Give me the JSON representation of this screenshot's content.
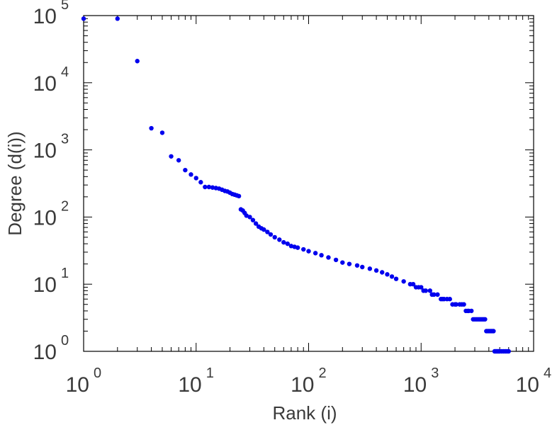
{
  "chart_data": {
    "type": "scatter",
    "xlabel": "Rank (i)",
    "ylabel": "Degree (d(i))",
    "x_scale": "log",
    "y_scale": "log",
    "xlim": [
      1,
      10000
    ],
    "ylim": [
      1,
      100000
    ],
    "grid": false,
    "marker_color": "#0000ee",
    "x_ticks": [
      {
        "base": "10",
        "exp": "0"
      },
      {
        "base": "10",
        "exp": "1"
      },
      {
        "base": "10",
        "exp": "2"
      },
      {
        "base": "10",
        "exp": "3"
      },
      {
        "base": "10",
        "exp": "4"
      }
    ],
    "y_ticks": [
      {
        "base": "10",
        "exp": "0"
      },
      {
        "base": "10",
        "exp": "1"
      },
      {
        "base": "10",
        "exp": "2"
      },
      {
        "base": "10",
        "exp": "3"
      },
      {
        "base": "10",
        "exp": "4"
      },
      {
        "base": "10",
        "exp": "5"
      }
    ],
    "series": [
      {
        "x": [
          1,
          2,
          3,
          4,
          5,
          6,
          7,
          8,
          9,
          10,
          11,
          12,
          13,
          14,
          15,
          16,
          17,
          18,
          19,
          20,
          21,
          22,
          23,
          24,
          25,
          26,
          27,
          28,
          30,
          32,
          34,
          36,
          38,
          40,
          43,
          46,
          50,
          55,
          60,
          65,
          70,
          75,
          80,
          90,
          100,
          115,
          130,
          150,
          175,
          200,
          230,
          270,
          300,
          350,
          400,
          450,
          500,
          550,
          600,
          700,
          800,
          850,
          900,
          950,
          1000,
          1050,
          1100,
          1200,
          1250,
          1300,
          1400,
          1500,
          1550,
          1600,
          1700,
          1800,
          1900,
          2000,
          2050,
          2200,
          2300,
          2400,
          2500,
          2600,
          2650,
          2800,
          2900,
          3000,
          3100,
          3200,
          3300,
          3400,
          3500,
          3600,
          3700,
          3800,
          3900,
          4000,
          4100,
          4200,
          4300,
          4400,
          4500,
          4600,
          4700,
          4800,
          4900,
          5000,
          5200,
          5400,
          5600,
          5800,
          6000
        ],
        "y": [
          90000,
          90000,
          21000,
          2100,
          1800,
          800,
          700,
          500,
          430,
          380,
          330,
          280,
          280,
          275,
          270,
          265,
          255,
          245,
          240,
          230,
          220,
          215,
          210,
          205,
          130,
          125,
          115,
          105,
          100,
          90,
          80,
          72,
          68,
          65,
          60,
          55,
          50,
          46,
          42,
          40,
          37,
          36,
          35,
          33,
          31,
          29,
          27,
          25,
          23,
          21,
          20,
          19,
          18,
          17,
          16,
          15,
          14,
          13,
          12,
          11,
          10,
          10,
          9,
          9,
          9,
          8,
          8,
          8,
          7,
          7,
          7,
          6,
          6,
          6,
          6,
          6,
          5,
          5,
          5,
          5,
          5,
          5,
          4,
          4,
          4,
          4,
          3,
          3,
          3,
          3,
          3,
          3,
          3,
          3,
          3,
          2,
          2,
          2,
          2,
          2,
          2,
          2,
          1,
          1,
          1,
          1,
          1,
          1,
          1,
          1,
          1,
          1,
          1
        ]
      }
    ]
  }
}
